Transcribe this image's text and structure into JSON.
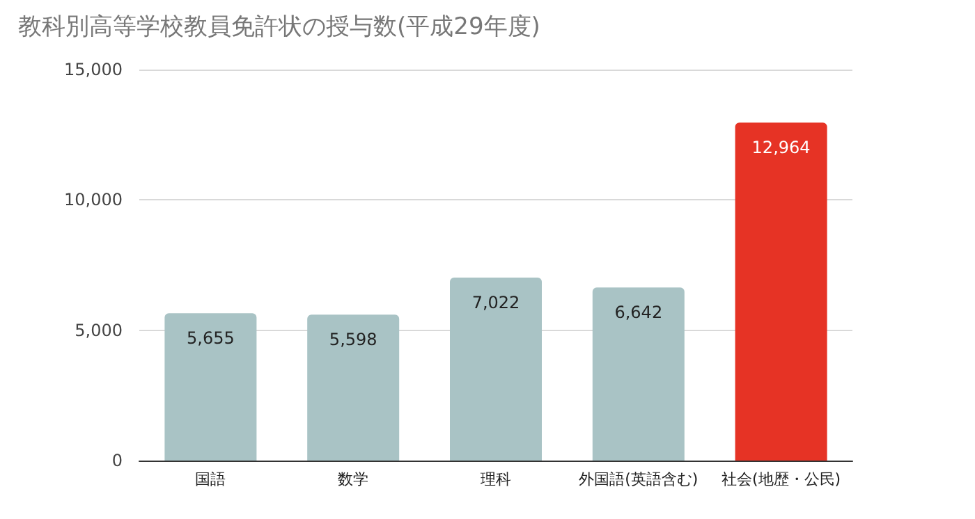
{
  "chart_data": {
    "type": "bar",
    "title": "教科別高等学校教員免許状の授与数(平成29年度)",
    "categories": [
      "国語",
      "数学",
      "理科",
      "外国語(英語含む)",
      "社会(地歴・公民)"
    ],
    "values": [
      5655,
      5598,
      7022,
      6642,
      12964
    ],
    "value_labels": [
      "5,655",
      "5,598",
      "7,022",
      "6,642",
      "12,964"
    ],
    "colors": [
      "#a9c3c5",
      "#a9c3c5",
      "#a9c3c5",
      "#a9c3c5",
      "#e63325"
    ],
    "ylim": [
      0,
      15000
    ],
    "yticks": [
      0,
      {
        "value": 5000,
        "label": "5,000"
      },
      {
        "value": 10000,
        "label": "10,000"
      },
      {
        "value": 15000,
        "label": "15,000"
      }
    ],
    "grid": "y"
  }
}
